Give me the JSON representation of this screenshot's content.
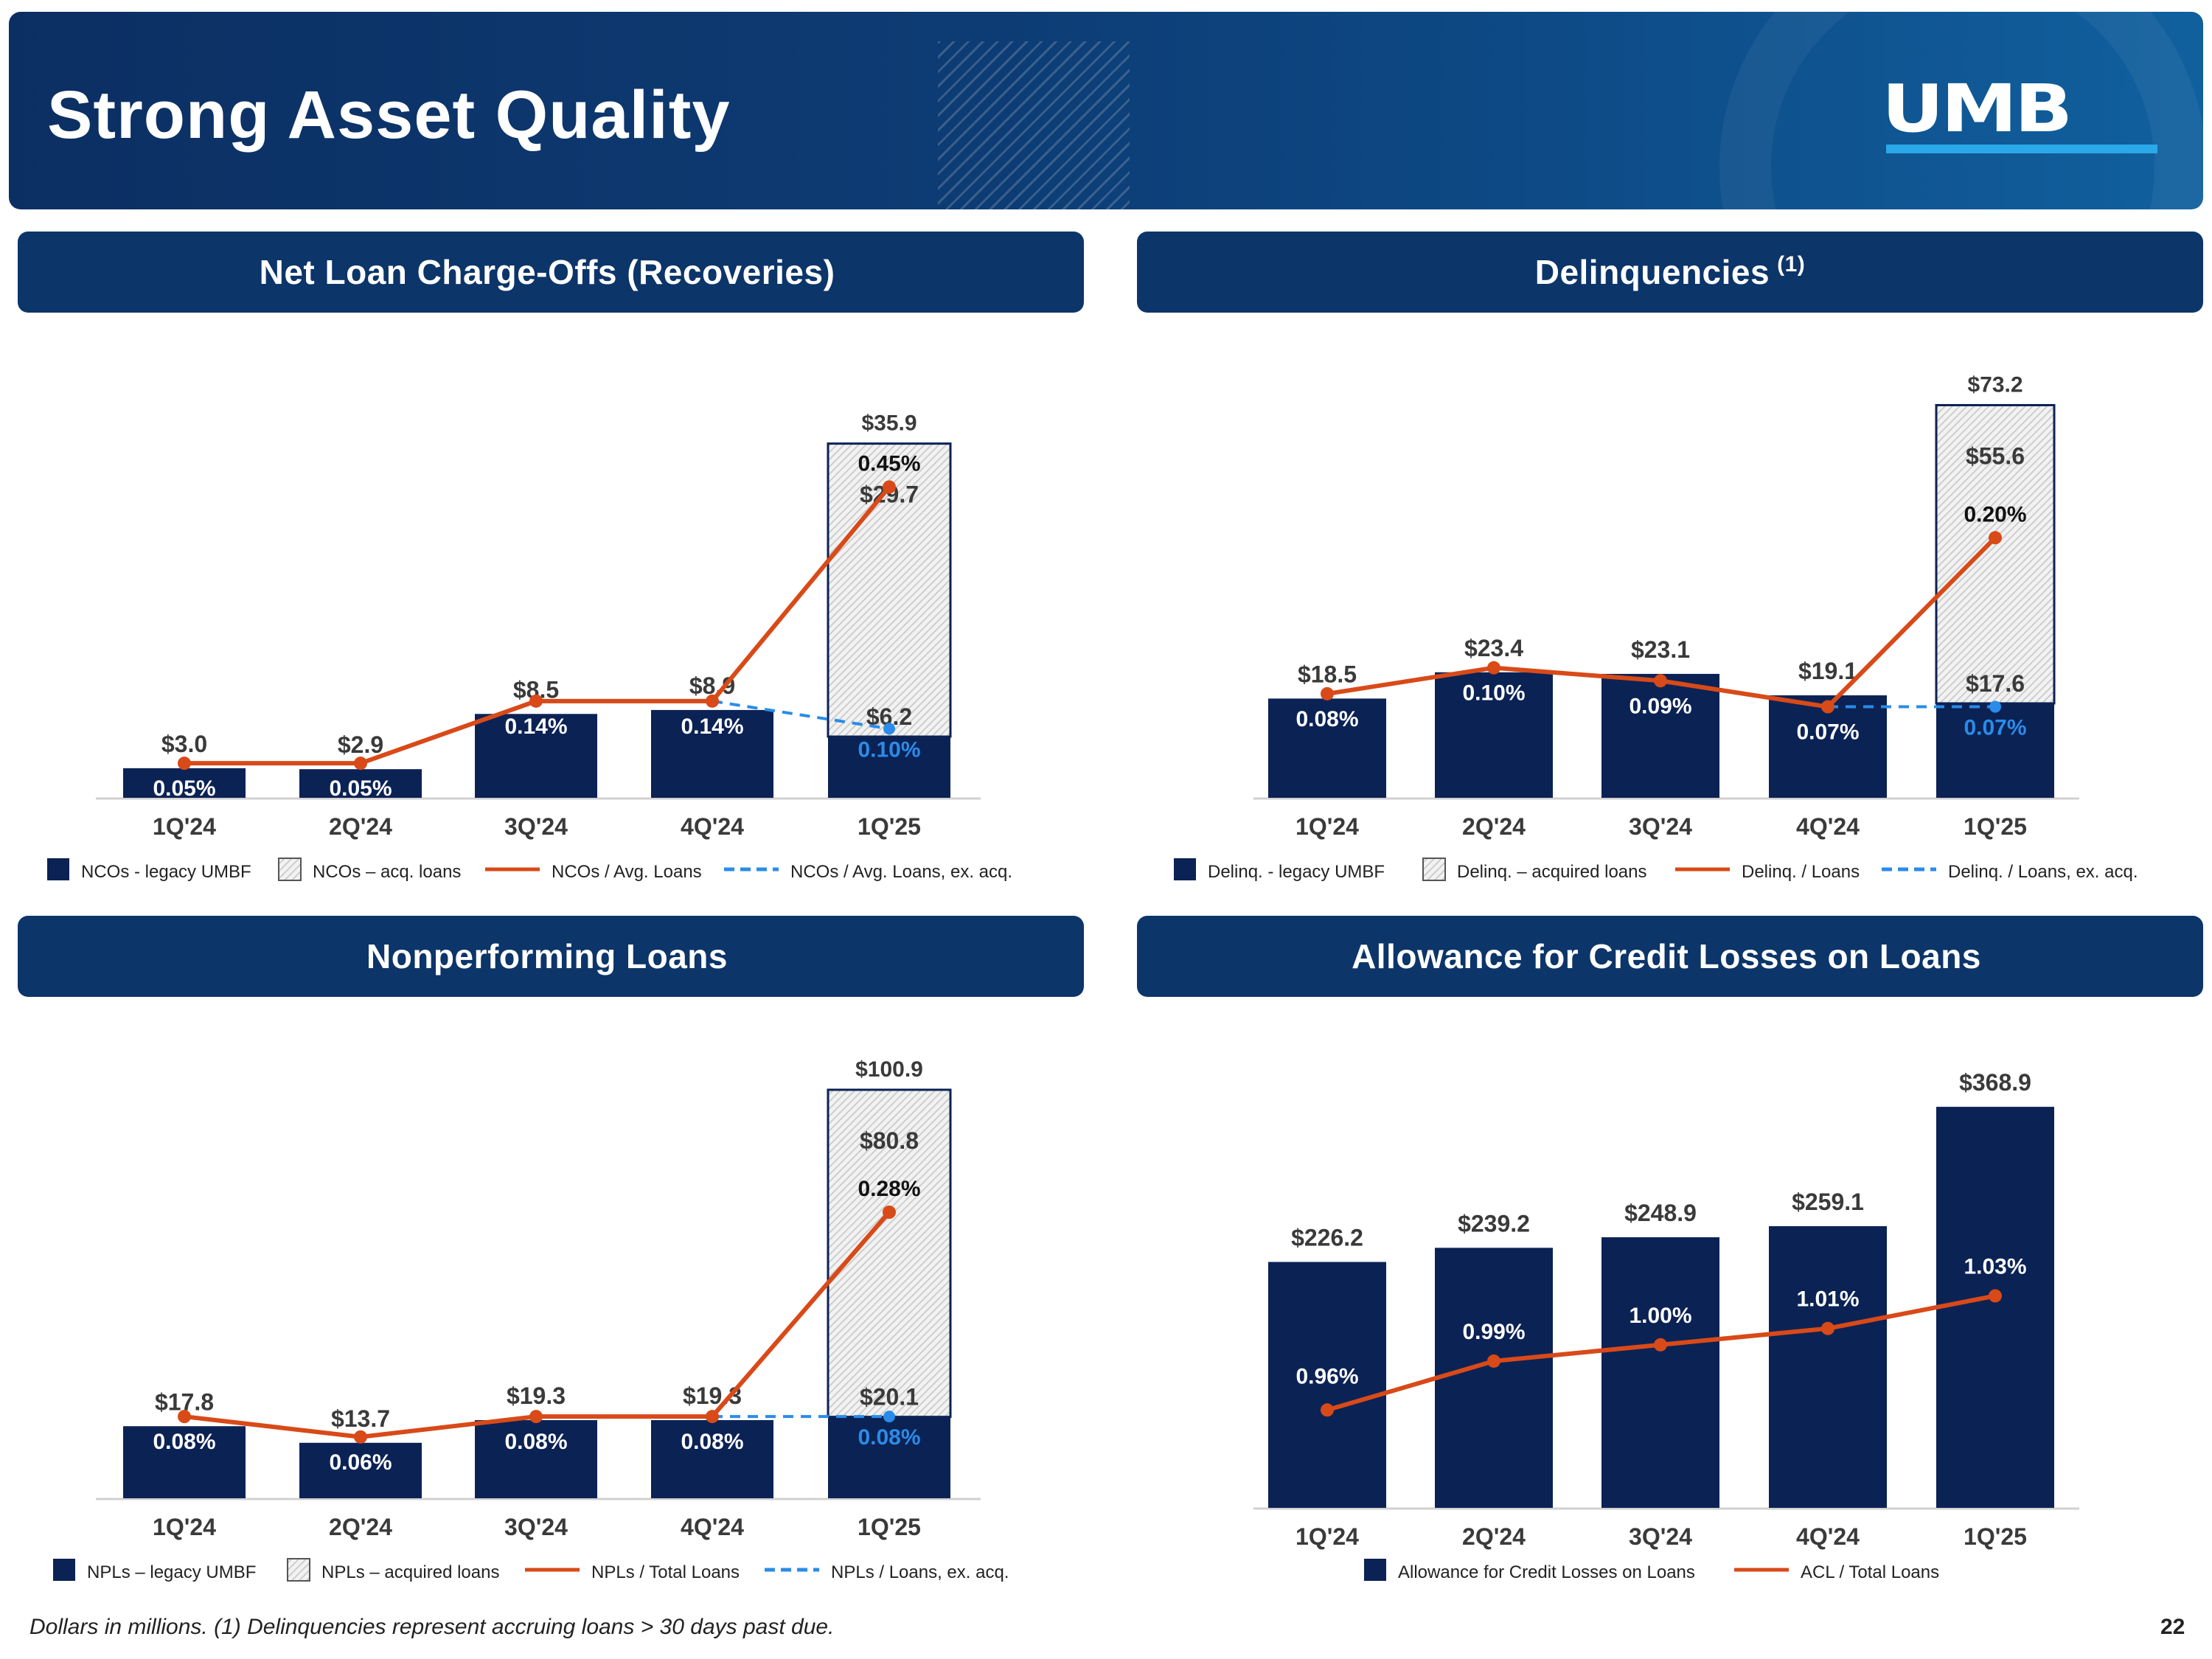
{
  "page": {
    "title": "Strong Asset Quality",
    "logo_text": "UMB",
    "footnote": "Dollars in millions. (1) Delinquencies represent accruing loans > 30 days past due.",
    "page_number": "22"
  },
  "colors": {
    "navy": "#0b2255",
    "orange": "#d84a18",
    "blue_dash": "#2a8ce8",
    "label_gray": "#3a3a3a",
    "hatch": "#c9c9c9"
  },
  "panels": [
    {
      "title": "Net Loan Charge-Offs (Recoveries)",
      "sup": ""
    },
    {
      "title": "Delinquencies",
      "sup": "(1)"
    },
    {
      "title": "Nonperforming Loans",
      "sup": ""
    },
    {
      "title": "Allowance for Credit Losses on Loans",
      "sup": ""
    }
  ],
  "chart_data": [
    {
      "type": "bar",
      "title": "Net Loan Charge-Offs (Recoveries)",
      "categories": [
        "1Q'24",
        "2Q'24",
        "3Q'24",
        "4Q'24",
        "1Q'25"
      ],
      "series": [
        {
          "name": "NCOs - legacy UMBF",
          "kind": "bar",
          "values": [
            3.0,
            2.9,
            8.5,
            8.9,
            6.2
          ],
          "labels": [
            "$3.0",
            "$2.9",
            "$8.5",
            "$8.9",
            "$6.2"
          ]
        },
        {
          "name": "NCOs – acq. loans",
          "kind": "bar-hatched",
          "values": [
            0,
            0,
            0,
            0,
            29.7
          ],
          "labels": [
            "",
            "",
            "",
            "",
            "$29.7"
          ]
        },
        {
          "name": "NCOs / Avg. Loans",
          "kind": "line",
          "values": [
            0.05,
            0.05,
            0.14,
            0.14,
            0.45
          ],
          "labels": [
            "0.05%",
            "0.05%",
            "0.14%",
            "0.14%",
            "0.45%"
          ]
        },
        {
          "name": "NCOs / Avg. Loans, ex. acq.",
          "kind": "dashed",
          "values": [
            null,
            null,
            null,
            0.14,
            0.1
          ],
          "labels": [
            "",
            "",
            "",
            "",
            "0.10%"
          ]
        }
      ],
      "totals": [
        "",
        "",
        "",
        "",
        "$35.9"
      ],
      "ylim_bar": [
        0,
        42
      ],
      "ylim_line": [
        0,
        0.6
      ]
    },
    {
      "type": "bar",
      "title": "Delinquencies",
      "categories": [
        "1Q'24",
        "2Q'24",
        "3Q'24",
        "4Q'24",
        "1Q'25"
      ],
      "series": [
        {
          "name": "Delinq. - legacy UMBF",
          "kind": "bar",
          "values": [
            18.5,
            23.4,
            23.1,
            19.1,
            17.6
          ],
          "labels": [
            "$18.5",
            "$23.4",
            "$23.1",
            "$19.1",
            "$17.6"
          ]
        },
        {
          "name": "Delinq. – acquired loans",
          "kind": "bar-hatched",
          "values": [
            0,
            0,
            0,
            0,
            55.6
          ],
          "labels": [
            "",
            "",
            "",
            "",
            "$55.6"
          ]
        },
        {
          "name": "Delinq. / Loans",
          "kind": "line",
          "values": [
            0.08,
            0.1,
            0.09,
            0.07,
            0.2
          ],
          "labels": [
            "0.08%",
            "0.10%",
            "0.09%",
            "0.07%",
            "0.20%"
          ]
        },
        {
          "name": "Delinq. / Loans, ex. acq.",
          "kind": "dashed",
          "values": [
            null,
            null,
            null,
            0.07,
            0.07
          ],
          "labels": [
            "",
            "",
            "",
            "",
            "0.07%"
          ]
        }
      ],
      "totals": [
        "",
        "",
        "",
        "",
        "$73.2"
      ],
      "ylim_bar": [
        0,
        80
      ],
      "ylim_line": [
        0,
        0.33
      ]
    },
    {
      "type": "bar",
      "title": "Nonperforming Loans",
      "categories": [
        "1Q'24",
        "2Q'24",
        "3Q'24",
        "4Q'24",
        "1Q'25"
      ],
      "series": [
        {
          "name": "NPLs – legacy UMBF",
          "kind": "bar",
          "values": [
            17.8,
            13.7,
            19.3,
            19.3,
            20.1
          ],
          "labels": [
            "$17.8",
            "$13.7",
            "$19.3",
            "$19.3",
            "$20.1"
          ]
        },
        {
          "name": "NPLs – acquired loans",
          "kind": "bar-hatched",
          "values": [
            0,
            0,
            0,
            0,
            80.8
          ],
          "labels": [
            "",
            "",
            "",
            "",
            "$80.8"
          ]
        },
        {
          "name": "NPLs / Total Loans",
          "kind": "line",
          "values": [
            0.08,
            0.06,
            0.08,
            0.08,
            0.28
          ],
          "labels": [
            "0.08%",
            "0.06%",
            "0.08%",
            "0.08%",
            "0.28%"
          ]
        },
        {
          "name": "NPLs / Loans, ex. acq.",
          "kind": "dashed",
          "values": [
            null,
            null,
            null,
            0.08,
            0.08
          ],
          "labels": [
            "",
            "",
            "",
            "",
            "0.08%"
          ]
        }
      ],
      "totals": [
        "",
        "",
        "",
        "",
        "$100.9"
      ],
      "ylim_bar": [
        0,
        106
      ],
      "ylim_line": [
        0,
        0.42
      ]
    },
    {
      "type": "bar",
      "title": "Allowance for Credit Losses on Loans",
      "categories": [
        "1Q'24",
        "2Q'24",
        "3Q'24",
        "4Q'24",
        "1Q'25"
      ],
      "series": [
        {
          "name": "Allowance for Credit Losses on Loans",
          "kind": "bar",
          "values": [
            226.2,
            239.2,
            248.9,
            259.1,
            368.9
          ],
          "labels": [
            "$226.2",
            "$239.2",
            "$248.9",
            "$259.1",
            "$368.9"
          ]
        },
        {
          "name": "ACL / Total Loans",
          "kind": "line",
          "values": [
            0.96,
            0.99,
            1.0,
            1.01,
            1.03
          ],
          "labels": [
            "0.96%",
            "0.99%",
            "1.00%",
            "1.01%",
            "1.03%"
          ]
        }
      ],
      "totals": [
        "",
        "",
        "",
        "",
        "",
        ""
      ],
      "ylim_bar": [
        0,
        390
      ],
      "ylim_line": [
        0.9,
        1.16
      ]
    }
  ]
}
